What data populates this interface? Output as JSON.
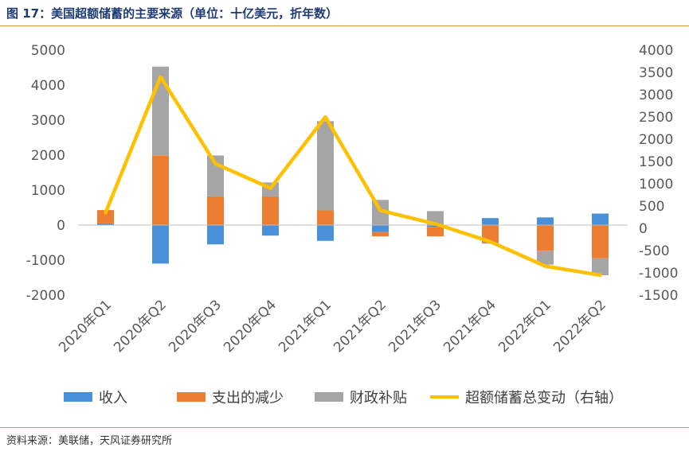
{
  "title": "图 17：美国超额储蓄的主要来源（单位：十亿美元，折年数）",
  "source": "资料来源：美联储，天风证券研究所",
  "colors": {
    "income": "#4a90d9",
    "spending": "#ed7d31",
    "fiscal": "#a5a5a5",
    "total_line": "#ffc000",
    "axis": "#bfbfbf",
    "tick_text": "#595959",
    "title": "#1f3b73",
    "rule": "#d99a3d"
  },
  "chart_data": {
    "type": "bar",
    "stacked": true,
    "categories": [
      "2020年Q1",
      "2020年Q2",
      "2020年Q3",
      "2020年Q4",
      "2021年Q1",
      "2021年Q2",
      "2021年Q3",
      "2021年Q4",
      "2022年Q1",
      "2022年Q2"
    ],
    "series": [
      {
        "name": "收入",
        "axis": "left",
        "values": [
          50,
          -1100,
          -550,
          -300,
          -450,
          -200,
          -50,
          200,
          220,
          330
        ]
      },
      {
        "name": "支出的减少",
        "axis": "left",
        "values": [
          380,
          1980,
          820,
          820,
          420,
          -120,
          -270,
          -500,
          -730,
          -950
        ]
      },
      {
        "name": "财政补贴",
        "axis": "left",
        "values": [
          0,
          2550,
          1170,
          400,
          2550,
          720,
          400,
          -30,
          -400,
          -480
        ]
      }
    ],
    "line": {
      "name": "超额储蓄总变动（右轴）",
      "axis": "right",
      "values": [
        350,
        3400,
        1450,
        900,
        2500,
        400,
        100,
        -300,
        -850,
        -1050
      ]
    },
    "y_left": {
      "min": -2000,
      "max": 5000,
      "step": 1000,
      "ticks": [
        "-2000",
        "-1000",
        "0",
        "1000",
        "2000",
        "3000",
        "4000",
        "5000"
      ]
    },
    "y_right": {
      "min": -1500,
      "max": 4000,
      "step": 500,
      "ticks": [
        "-1500",
        "-1000",
        "-500",
        "0",
        "500",
        "1000",
        "1500",
        "2000",
        "2500",
        "3000",
        "3500",
        "4000"
      ]
    },
    "legend": [
      "收入",
      "支出的减少",
      "财政补贴",
      "超额储蓄总变动（右轴）"
    ],
    "legend_position": "bottom",
    "grid": false
  }
}
